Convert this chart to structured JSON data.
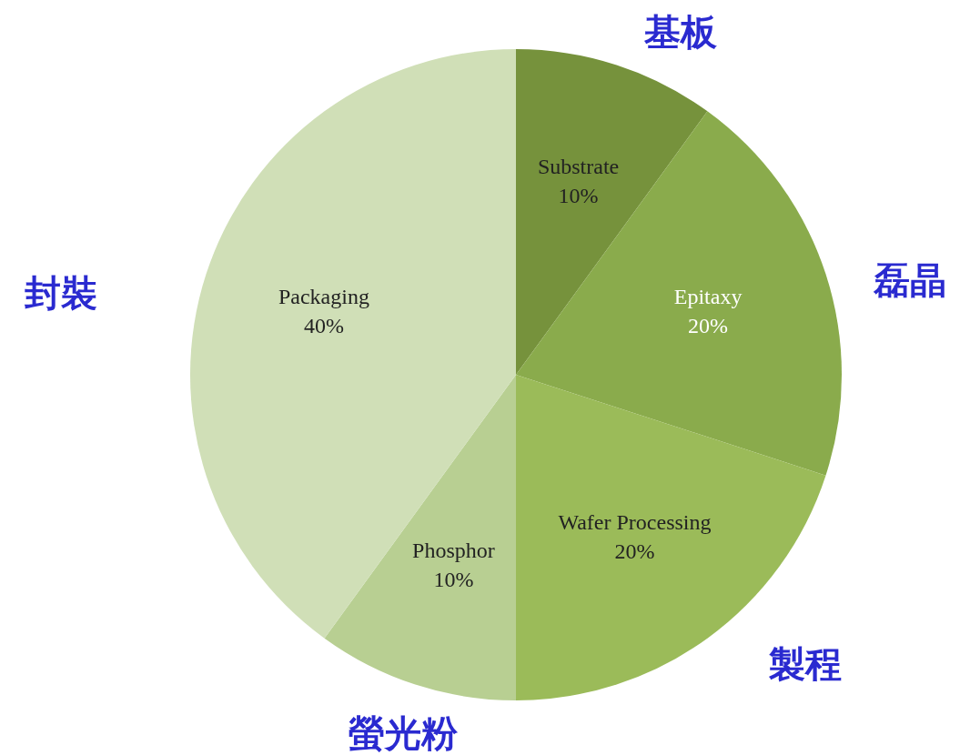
{
  "chart_data": {
    "type": "pie",
    "categories": [
      "Substrate",
      "Epitaxy",
      "Wafer Processing",
      "Phosphor",
      "Packaging"
    ],
    "values": [
      10,
      20,
      20,
      10,
      40
    ],
    "value_labels": [
      "10%",
      "20%",
      "20%",
      "10%",
      "40%"
    ],
    "colors": [
      "#76923c",
      "#8aab4c",
      "#9bbb59",
      "#b8cf92",
      "#d0dfb7"
    ],
    "annotations": [
      "基板",
      "磊晶",
      "製程",
      "螢光粉",
      "封裝"
    ],
    "legend": false
  }
}
